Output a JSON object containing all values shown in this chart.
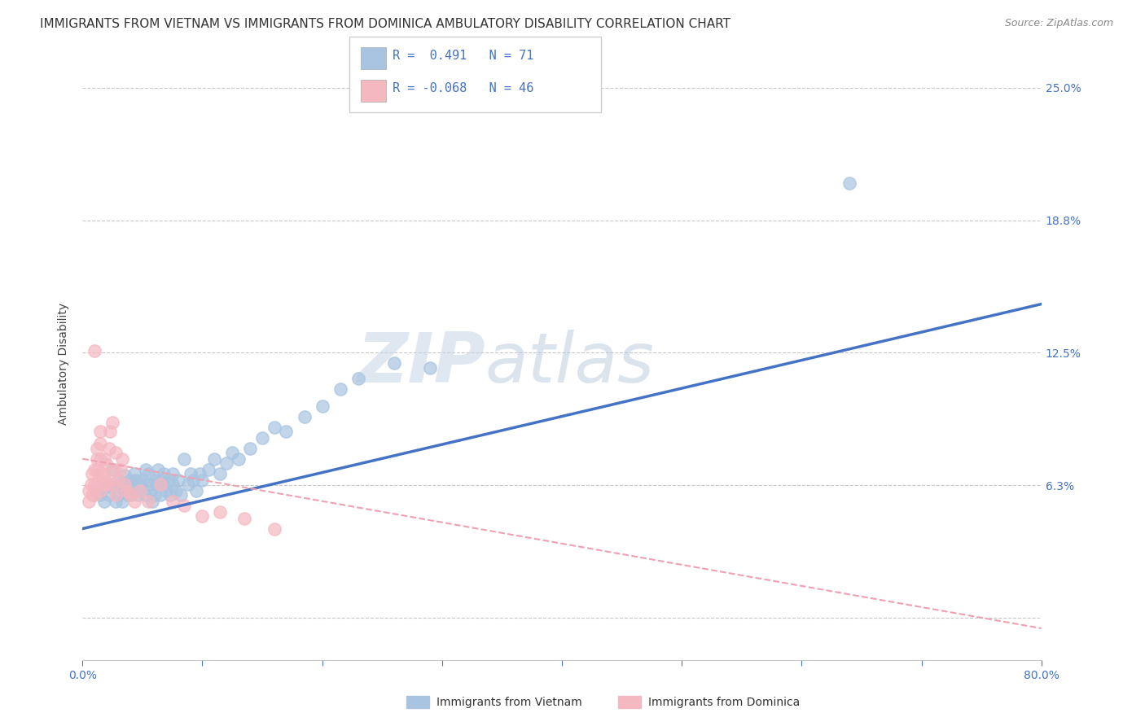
{
  "title": "IMMIGRANTS FROM VIETNAM VS IMMIGRANTS FROM DOMINICA AMBULATORY DISABILITY CORRELATION CHART",
  "source": "Source: ZipAtlas.com",
  "ylabel": "Ambulatory Disability",
  "xlim": [
    0.0,
    0.8
  ],
  "ylim": [
    -0.02,
    0.26
  ],
  "ytick_vals": [
    0.0,
    0.0625,
    0.125,
    0.1875,
    0.25
  ],
  "ytick_labels": [
    "",
    "6.3%",
    "12.5%",
    "18.8%",
    "25.0%"
  ],
  "xticks": [
    0.0,
    0.1,
    0.2,
    0.3,
    0.4,
    0.5,
    0.6,
    0.7,
    0.8
  ],
  "xtick_labels": [
    "0.0%",
    "",
    "",
    "",
    "",
    "",
    "",
    "",
    "80.0%"
  ],
  "background_color": "#ffffff",
  "watermark_zip": "ZIP",
  "watermark_atlas": "atlas",
  "legend_text1": "R =  0.491   N = 71",
  "legend_text2": "R = -0.068   N = 46",
  "color_vietnam": "#a8c4e0",
  "color_dominica": "#f4b8c1",
  "line_color_vietnam": "#4472c4",
  "line_color_dominica": "#f0a0b0",
  "axis_color": "#4472c4",
  "title_fontsize": 11,
  "axis_label_fontsize": 10,
  "tick_fontsize": 10,
  "vietnam_scatter_x": [
    0.012,
    0.015,
    0.018,
    0.02,
    0.022,
    0.025,
    0.025,
    0.028,
    0.03,
    0.03,
    0.032,
    0.033,
    0.035,
    0.035,
    0.037,
    0.038,
    0.04,
    0.04,
    0.042,
    0.043,
    0.045,
    0.045,
    0.047,
    0.048,
    0.05,
    0.052,
    0.053,
    0.055,
    0.055,
    0.057,
    0.058,
    0.06,
    0.06,
    0.062,
    0.063,
    0.065,
    0.065,
    0.067,
    0.068,
    0.07,
    0.072,
    0.073,
    0.075,
    0.075,
    0.078,
    0.08,
    0.082,
    0.085,
    0.088,
    0.09,
    0.092,
    0.095,
    0.098,
    0.1,
    0.105,
    0.11,
    0.115,
    0.12,
    0.125,
    0.13,
    0.14,
    0.15,
    0.16,
    0.17,
    0.185,
    0.2,
    0.215,
    0.23,
    0.26,
    0.29,
    0.64
  ],
  "vietnam_scatter_y": [
    0.06,
    0.058,
    0.055,
    0.062,
    0.058,
    0.063,
    0.07,
    0.055,
    0.058,
    0.065,
    0.062,
    0.055,
    0.06,
    0.067,
    0.063,
    0.058,
    0.065,
    0.058,
    0.063,
    0.068,
    0.06,
    0.065,
    0.058,
    0.063,
    0.065,
    0.058,
    0.07,
    0.063,
    0.068,
    0.06,
    0.055,
    0.065,
    0.058,
    0.063,
    0.07,
    0.065,
    0.058,
    0.063,
    0.068,
    0.06,
    0.065,
    0.058,
    0.063,
    0.068,
    0.06,
    0.065,
    0.058,
    0.075,
    0.063,
    0.068,
    0.065,
    0.06,
    0.068,
    0.065,
    0.07,
    0.075,
    0.068,
    0.073,
    0.078,
    0.075,
    0.08,
    0.085,
    0.09,
    0.088,
    0.095,
    0.1,
    0.108,
    0.113,
    0.12,
    0.118,
    0.205
  ],
  "dominica_scatter_x": [
    0.005,
    0.005,
    0.007,
    0.008,
    0.008,
    0.01,
    0.01,
    0.01,
    0.012,
    0.012,
    0.013,
    0.013,
    0.015,
    0.015,
    0.015,
    0.015,
    0.015,
    0.017,
    0.018,
    0.018,
    0.02,
    0.02,
    0.022,
    0.022,
    0.023,
    0.025,
    0.025,
    0.027,
    0.028,
    0.028,
    0.03,
    0.032,
    0.033,
    0.035,
    0.037,
    0.04,
    0.043,
    0.048,
    0.055,
    0.065,
    0.075,
    0.085,
    0.1,
    0.115,
    0.135,
    0.16
  ],
  "dominica_scatter_y": [
    0.06,
    0.055,
    0.063,
    0.058,
    0.068,
    0.063,
    0.07,
    0.058,
    0.075,
    0.08,
    0.065,
    0.07,
    0.06,
    0.068,
    0.075,
    0.082,
    0.088,
    0.063,
    0.068,
    0.075,
    0.063,
    0.072,
    0.065,
    0.08,
    0.088,
    0.063,
    0.092,
    0.07,
    0.078,
    0.058,
    0.065,
    0.07,
    0.075,
    0.063,
    0.06,
    0.058,
    0.055,
    0.06,
    0.055,
    0.063,
    0.055,
    0.053,
    0.048,
    0.05,
    0.047,
    0.042
  ],
  "dominica_extra_high_x": [
    0.01
  ],
  "dominica_extra_high_y": [
    0.126
  ],
  "vietnam_line_x0": 0.0,
  "vietnam_line_x1": 0.8,
  "vietnam_line_y0": 0.042,
  "vietnam_line_y1": 0.148,
  "dominica_line_x0": 0.0,
  "dominica_line_x1": 0.8,
  "dominica_line_y0": 0.075,
  "dominica_line_y1": -0.005
}
